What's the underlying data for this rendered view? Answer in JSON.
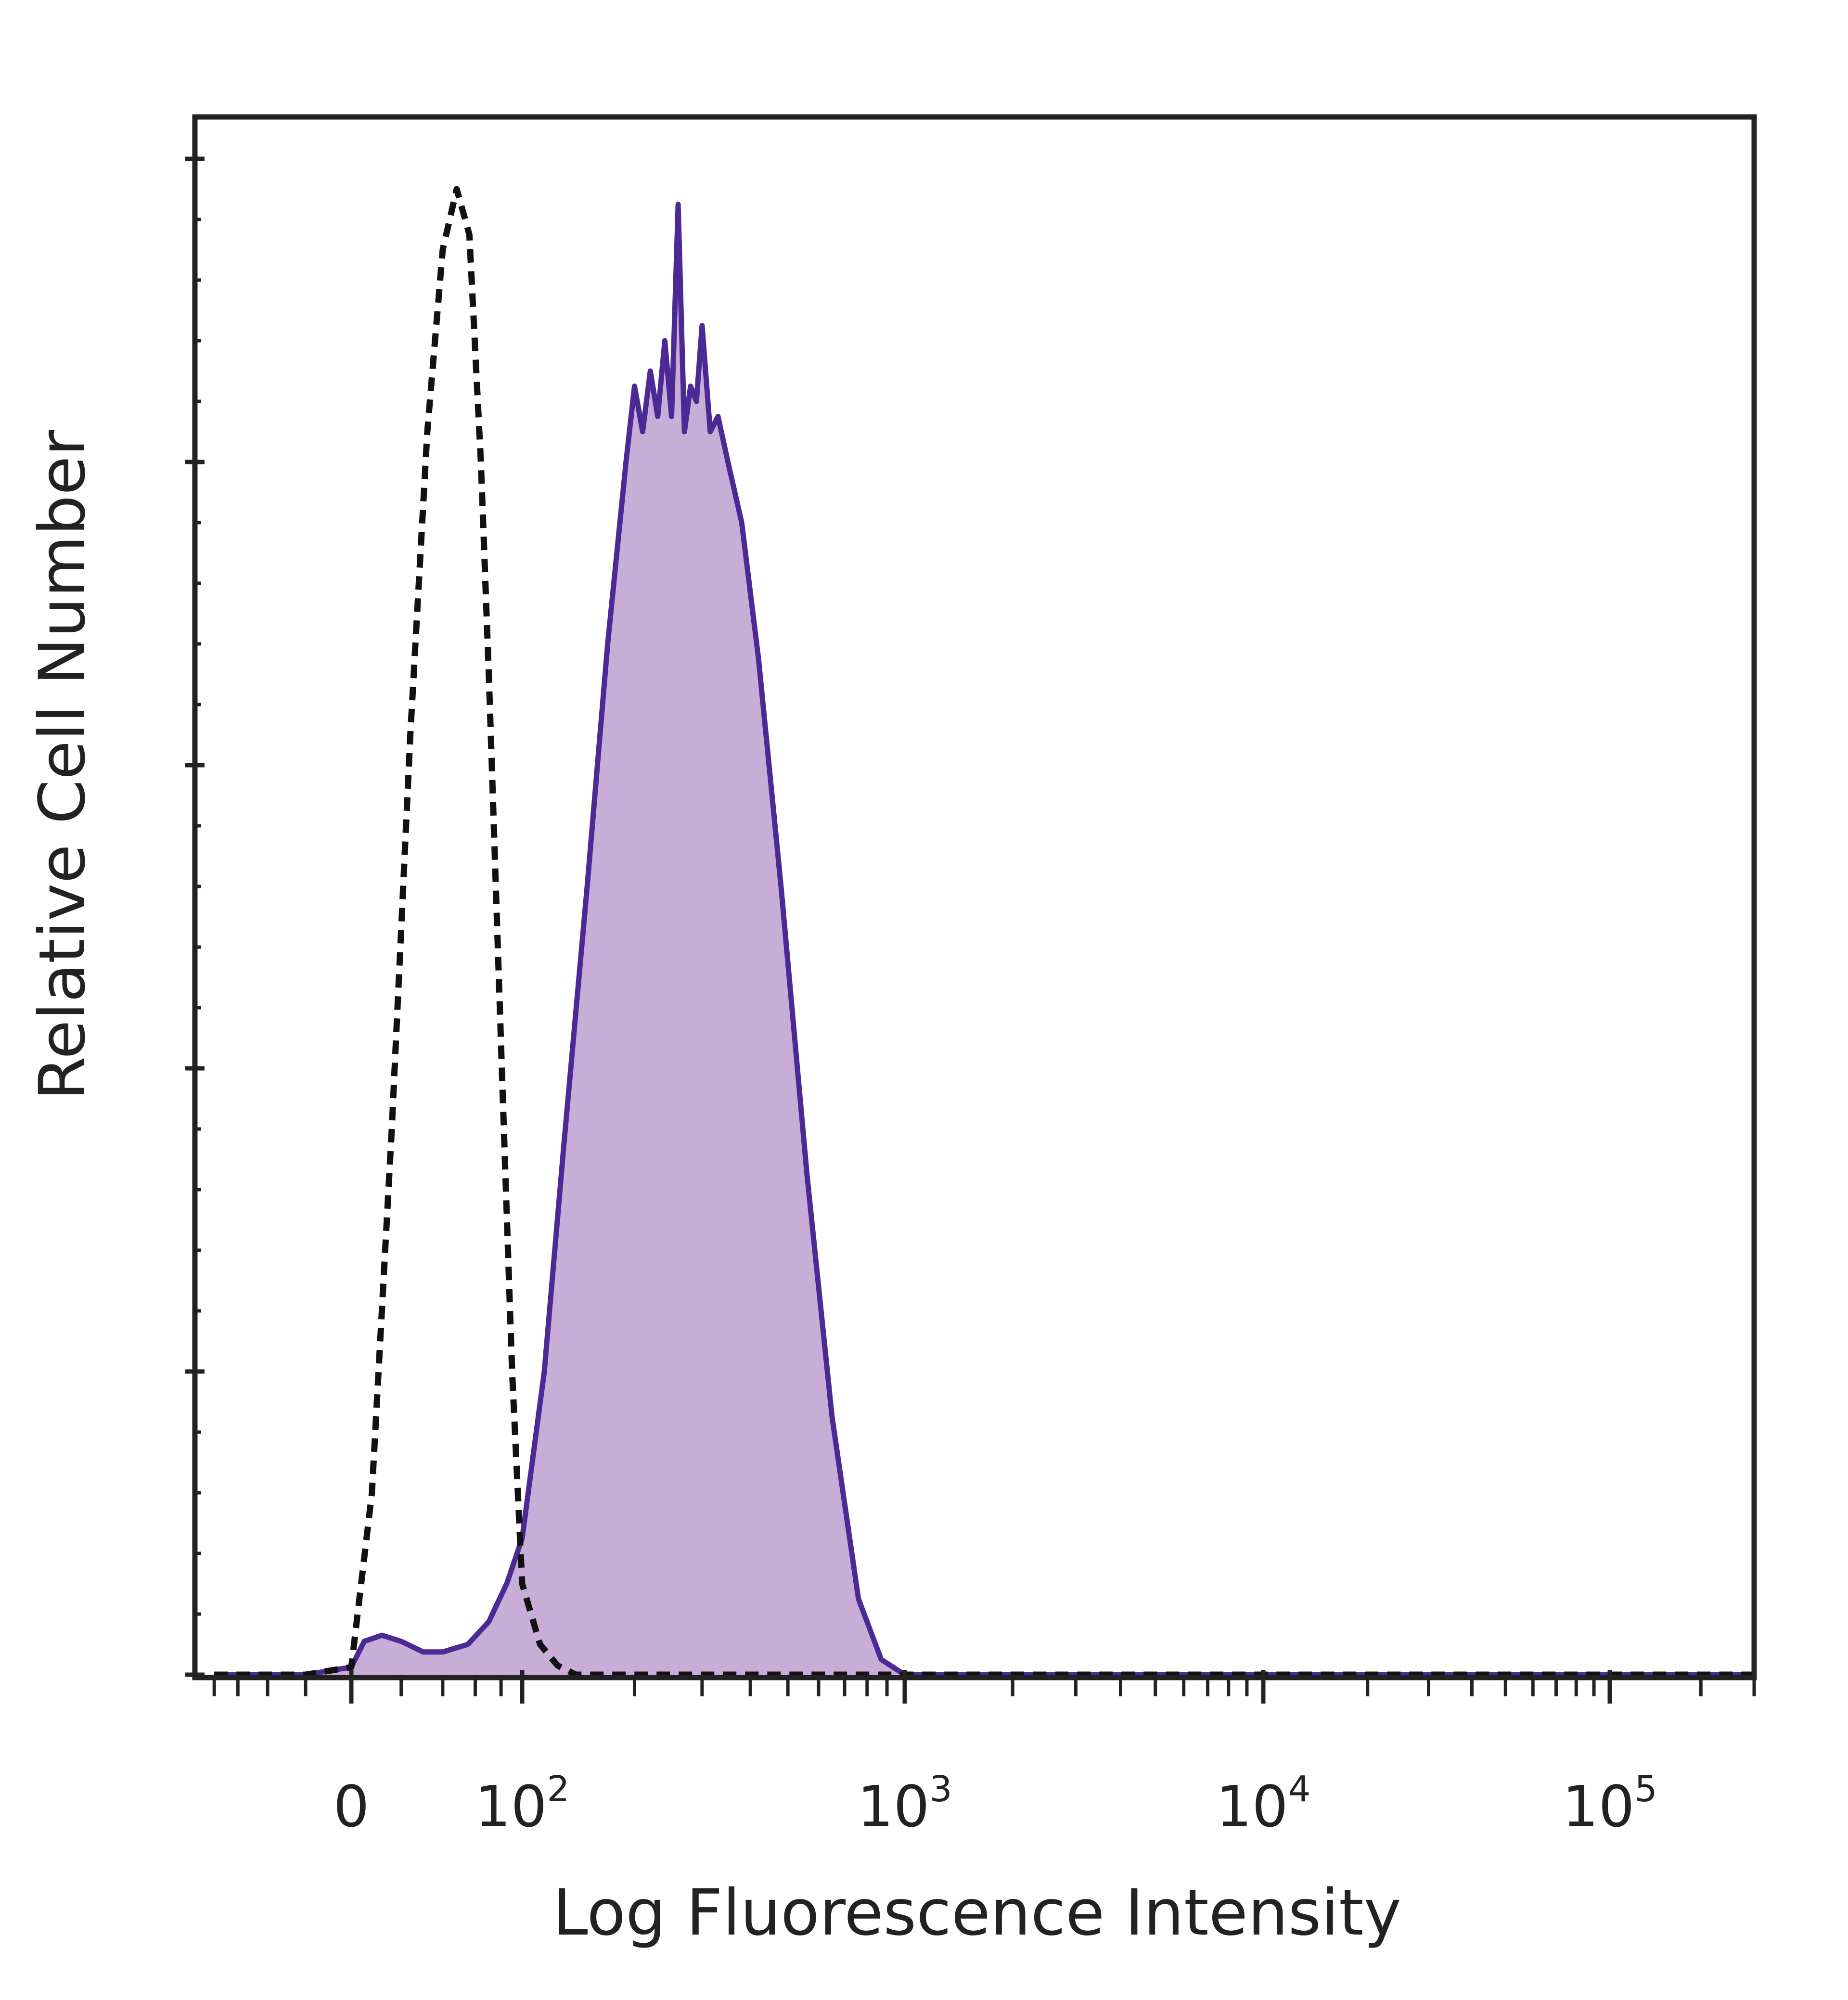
{
  "chart_data": {
    "type": "area",
    "xlabel": "Log Fluorescence Intensity",
    "ylabel": "Relative Cell Number",
    "x_scale": "biexponential",
    "x_ticks": [
      {
        "value": 0,
        "base": "0",
        "exp": ""
      },
      {
        "value": 100,
        "base": "10",
        "exp": "2"
      },
      {
        "value": 1000,
        "base": "10",
        "exp": "3"
      },
      {
        "value": 10000,
        "base": "10",
        "exp": "4"
      },
      {
        "value": 100000,
        "base": "10",
        "exp": "5"
      }
    ],
    "ylim": [
      0,
      100
    ],
    "y_major_ticks": [
      0,
      20,
      40,
      60,
      80,
      100
    ],
    "grid": false,
    "legend": "none",
    "colors": {
      "sample_line": "#4b2a96",
      "sample_fill": "#c8aed6",
      "control_line": "#111111"
    },
    "series": [
      {
        "style": "dashed-black",
        "x": [
          -80,
          -20,
          0,
          8,
          16,
          24,
          32,
          40,
          48,
          56,
          64,
          70,
          76,
          82,
          90,
          100,
          112,
          125,
          140,
          160,
          200,
          300,
          1000,
          10000,
          100000,
          300000
        ],
        "y": [
          0,
          0,
          0.5,
          12,
          36,
          62,
          82,
          94,
          98,
          95,
          80,
          66,
          51,
          37,
          20,
          6,
          2,
          0.6,
          0,
          0,
          0,
          0,
          0,
          0,
          0,
          0
        ]
      },
      {
        "style": "purple-filled",
        "x": [
          -80,
          -20,
          0,
          5,
          12,
          20,
          30,
          40,
          55,
          70,
          85,
          100,
          115,
          130,
          150,
          170,
          190,
          200,
          210,
          220,
          230,
          240,
          250,
          260,
          270,
          280,
          290,
          300,
          315,
          330,
          350,
          380,
          420,
          480,
          560,
          650,
          760,
          870,
          1000,
          1200,
          10000,
          100000,
          300000
        ],
        "y": [
          0,
          0,
          0.5,
          2.2,
          2.6,
          2.2,
          1.5,
          1.5,
          2.0,
          3.5,
          6.0,
          9.0,
          20,
          35,
          52,
          68,
          80,
          85,
          82,
          86,
          83,
          88,
          83,
          97,
          82,
          85,
          84,
          89,
          82,
          83,
          80,
          76,
          67,
          52,
          33,
          17,
          5,
          1,
          0,
          0,
          0,
          0,
          0
        ]
      }
    ]
  }
}
